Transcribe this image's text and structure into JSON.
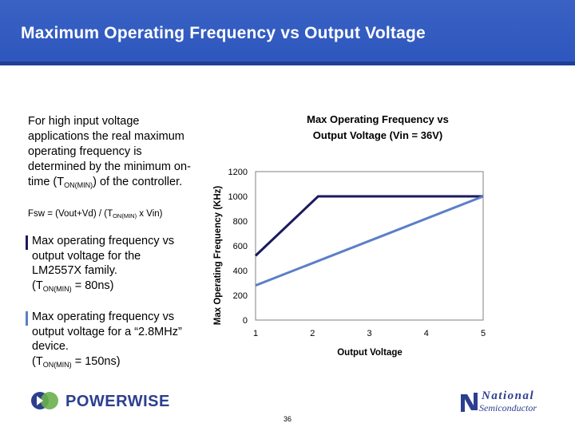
{
  "slide": {
    "title": "Maximum Operating Frequency vs Output Voltage",
    "intro_parts": [
      "For high input voltage applications the real maximum operating frequency is determined by the minimum on-time (T",
      "ON(MIN)",
      ") of the controller."
    ],
    "formula_parts": [
      "Fsw = (Vout+Vd) / (T",
      "ON(MIN)",
      " x Vin)"
    ],
    "notes": [
      {
        "text": "Max operating frequency vs output voltage for the LM2557X family.",
        "param_pre": "(T",
        "param_sub": "ON(MIN)",
        "param_post": " = 80ns)",
        "color": "#1a1a5e"
      },
      {
        "text": "Max operating frequency vs output voltage for a “2.8MHz” device.",
        "param_pre": "(T",
        "param_sub": "ON(MIN)",
        "param_post": " = 150ns)",
        "color": "#5b7fc7"
      }
    ],
    "page_number": "36",
    "logo_left": "POWERWISE",
    "logo_right_line1": "National",
    "logo_right_line2": "Semiconductor"
  },
  "chart_data": {
    "type": "line",
    "title_lines": [
      "Max Operating Frequency vs",
      "Output Voltage (Vin = 36V)"
    ],
    "xlabel": "Output Voltage",
    "ylabel": "Max Operating Frequency (KHz)",
    "xlim": [
      1,
      5
    ],
    "ylim": [
      0,
      1200
    ],
    "xticks": [
      1,
      2,
      3,
      4,
      5
    ],
    "yticks": [
      0,
      200,
      400,
      600,
      800,
      1000,
      1200
    ],
    "grid": false,
    "legend": "none",
    "series": [
      {
        "color": "#1a1a5e",
        "x": [
          1,
          2.1,
          5
        ],
        "y": [
          520,
          1000,
          1000
        ]
      },
      {
        "color": "#5b7fc7",
        "x": [
          1,
          5
        ],
        "y": [
          280,
          1000
        ]
      }
    ]
  }
}
